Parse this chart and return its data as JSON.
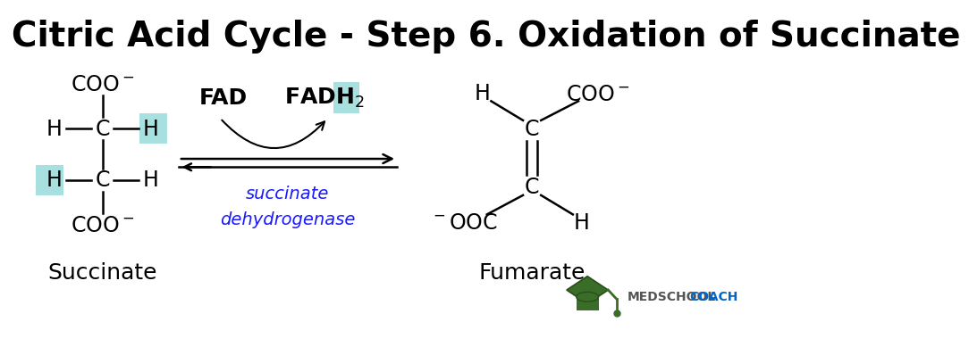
{
  "title": "Citric Acid Cycle - Step 6. Oxidation of Succinate",
  "title_size": 28,
  "bg_color": "#ffffff",
  "highlight_cyan": "#a8e0e0",
  "succinate_label": "Succinate",
  "fumarate_label": "Fumarate",
  "fad_label": "FAD",
  "enzyme_line1": "succinate",
  "enzyme_line2": "dehydrogenase",
  "enzyme_color": "#1a1aff",
  "text_color": "#000000",
  "medschool_gray": "#555555",
  "medschool_blue": "#0066cc",
  "cap_green": "#3a6e28",
  "cap_dark": "#2a4e1a"
}
